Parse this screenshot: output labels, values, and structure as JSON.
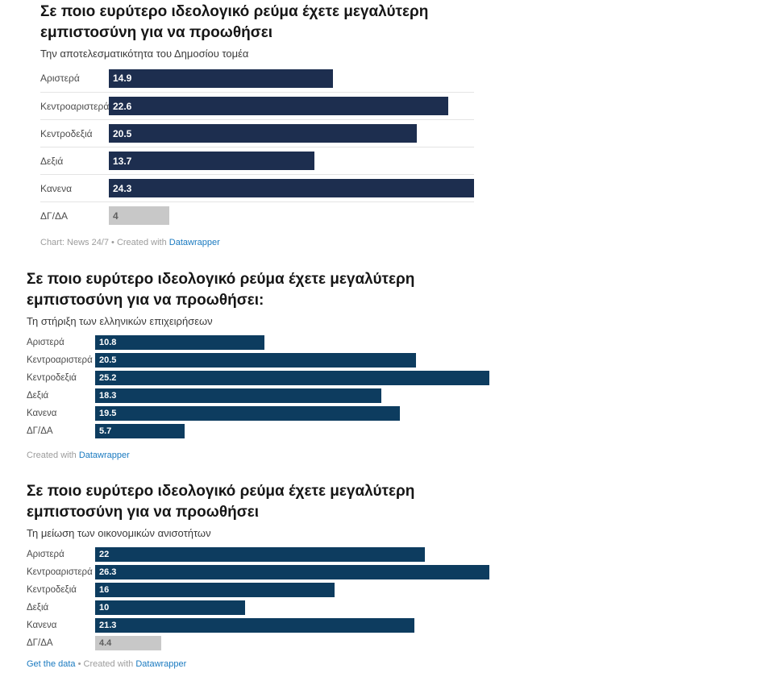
{
  "page": {
    "background": "#ffffff",
    "link_color": "#1a7ac0"
  },
  "chart_data": [
    {
      "type": "bar",
      "orientation": "horizontal",
      "title": "Σε ποιο ευρύτερο ιδεολογικό ρεύμα έχετε μεγαλύτερη εμπιστοσύνη για να προωθήσει",
      "subtitle": "Την αποτελεσματικότητα του Δημοσίου τομέα",
      "categories": [
        "Αριστερά",
        "Κεντροαριστερά",
        "Κεντροδεξιά",
        "Δεξιά",
        "Κανενα",
        "ΔΓ/ΔΑ"
      ],
      "values": [
        14.9,
        22.6,
        20.5,
        13.7,
        24.3,
        4
      ],
      "value_labels": [
        "14.9",
        "22.6",
        "20.5",
        "13.7",
        "24.3",
        "4"
      ],
      "muted_categories": [
        "ΔΓ/ΔΑ"
      ],
      "bar_color": "#1d2e4f",
      "muted_bar_color": "#c8c8c8",
      "xlim": [
        0,
        24.3
      ],
      "grid": false,
      "legend": "none",
      "row_separators": true,
      "footer_segments": [
        {
          "text": "Chart: News 24/7 • Created with ",
          "link": false
        },
        {
          "text": "Datawrapper",
          "link": true
        }
      ]
    },
    {
      "type": "bar",
      "orientation": "horizontal",
      "title": "Σε ποιο ευρύτερο ιδεολογικό ρεύμα έχετε μεγαλύτερη εμπιστοσύνη για να προωθήσει:",
      "subtitle": "Τη στήριξη των ελληνικών επιχειρήσεων",
      "categories": [
        "Αριστερά",
        "Κεντροαριστερά",
        "Κεντροδεξιά",
        "Δεξιά",
        "Κανενα",
        "ΔΓ/ΔΑ"
      ],
      "values": [
        10.8,
        20.5,
        25.2,
        18.3,
        19.5,
        5.7
      ],
      "value_labels": [
        "10.8",
        "20.5",
        "25.2",
        "18.3",
        "19.5",
        "5.7"
      ],
      "muted_categories": [],
      "bar_color": "#0d3c5f",
      "muted_bar_color": "#c8c8c8",
      "xlim": [
        0,
        25.2
      ],
      "grid": false,
      "legend": "none",
      "row_separators": false,
      "footer_segments": [
        {
          "text": "Created with ",
          "link": false
        },
        {
          "text": "Datawrapper",
          "link": true
        }
      ]
    },
    {
      "type": "bar",
      "orientation": "horizontal",
      "title": "Σε ποιο ευρύτερο ιδεολογικό ρεύμα έχετε μεγαλύτερη εμπιστοσύνη για να προωθήσει",
      "subtitle": "Τη μείωση των οικονομικών ανισοτήτων",
      "categories": [
        "Αριστερά",
        "Κεντροαριστερά",
        "Κεντροδεξιά",
        "Δεξιά",
        "Κανενα",
        "ΔΓ/ΔΑ"
      ],
      "values": [
        22,
        26.3,
        16,
        10,
        21.3,
        4.4
      ],
      "value_labels": [
        "22",
        "26.3",
        "16",
        "10",
        "21.3",
        "4.4"
      ],
      "muted_categories": [
        "ΔΓ/ΔΑ"
      ],
      "bar_color": "#0d3c5f",
      "muted_bar_color": "#c8c8c8",
      "xlim": [
        0,
        26.3
      ],
      "grid": false,
      "legend": "none",
      "row_separators": false,
      "footer_segments": [
        {
          "text": "Get the data",
          "link": true
        },
        {
          "text": " • Created with ",
          "link": false
        },
        {
          "text": "Datawrapper",
          "link": true
        }
      ]
    }
  ]
}
